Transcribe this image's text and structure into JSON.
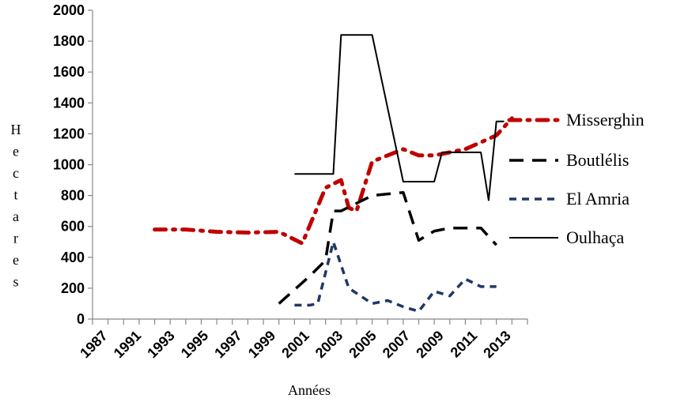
{
  "chart_data": {
    "type": "line",
    "xlabel": "Années",
    "ylabel": "Hectares",
    "ylim": [
      0,
      2000
    ],
    "yticks": [
      "0",
      "200",
      "400",
      "600",
      "800",
      "1000",
      "1200",
      "1400",
      "1600",
      "1800",
      "2000"
    ],
    "xlim": [
      1987,
      2015
    ],
    "xticks": [
      "1987",
      "1991",
      "1993",
      "1995",
      "1997",
      "1999",
      "2001",
      "2003",
      "2005",
      "2007",
      "2009",
      "2011",
      "2013"
    ],
    "grid": false,
    "legend_position": "right",
    "series": [
      {
        "name": "Misserghin",
        "color": "#c00000",
        "style": "dash-dot",
        "x": [
          1991,
          1993,
          1995,
          1997,
          1999,
          2000.5,
          2002,
          2003,
          2003.5,
          2004,
          2005,
          2007,
          2008,
          2009,
          2011,
          2013,
          2014
        ],
        "y": [
          580,
          580,
          565,
          560,
          565,
          490,
          850,
          900,
          720,
          700,
          1020,
          1100,
          1060,
          1060,
          1100,
          1190,
          1300
        ]
      },
      {
        "name": "Boutlélis",
        "color": "#000000",
        "style": "long-dash",
        "x": [
          1999,
          2001,
          2002,
          2002.5,
          2003,
          2005,
          2007,
          2008,
          2009,
          2010,
          2012,
          2013
        ],
        "y": [
          100,
          280,
          380,
          700,
          700,
          800,
          820,
          510,
          570,
          590,
          590,
          480
        ]
      },
      {
        "name": "El Amria",
        "color": "#1f3864",
        "style": "dash",
        "x": [
          2000,
          2001,
          2001.5,
          2002.5,
          2003.5,
          2005,
          2006,
          2007,
          2008,
          2009,
          2010,
          2011,
          2012,
          2013
        ],
        "y": [
          90,
          90,
          100,
          500,
          200,
          100,
          120,
          80,
          50,
          180,
          150,
          260,
          210,
          210
        ]
      },
      {
        "name": "Oulhaça",
        "color": "#000000",
        "style": "solid",
        "x": [
          2000,
          2001,
          2002,
          2002.5,
          2003,
          2005,
          2007,
          2008,
          2009,
          2009.5,
          2010,
          2011,
          2012,
          2012.5,
          2013,
          2013.5
        ],
        "y": [
          940,
          940,
          940,
          940,
          1840,
          1840,
          890,
          890,
          890,
          1080,
          1080,
          1080,
          1080,
          770,
          1280,
          1280
        ]
      }
    ]
  }
}
